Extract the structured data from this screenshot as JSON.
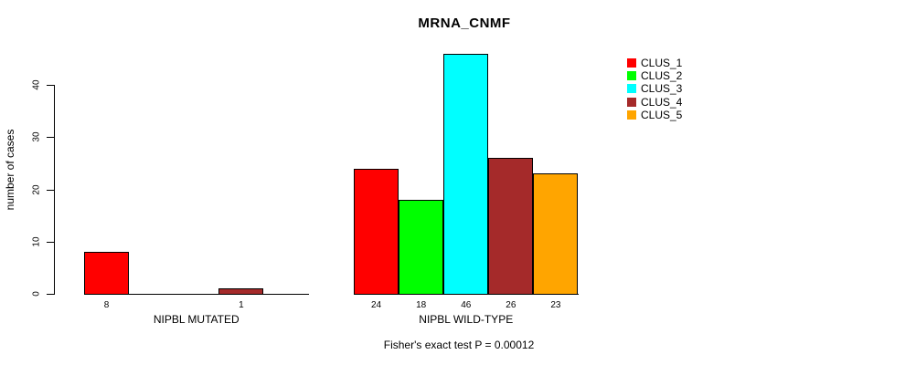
{
  "chart_data": {
    "type": "bar",
    "title": "MRNA_CNMF",
    "ylabel": "number of cases",
    "yticks": [
      0,
      10,
      20,
      30,
      40
    ],
    "ylim": [
      0,
      46
    ],
    "grid": false,
    "legend_position": "right",
    "legend": [
      "CLUS_1",
      "CLUS_2",
      "CLUS_3",
      "CLUS_4",
      "CLUS_5"
    ],
    "colors": [
      "#ff0000",
      "#00ff00",
      "#00ffff",
      "#a52a2a",
      "#ffa500"
    ],
    "groups": [
      {
        "label": "NIPBL MUTATED",
        "values": [
          8,
          0,
          0,
          1,
          0
        ]
      },
      {
        "label": "NIPBL WILD-TYPE",
        "values": [
          24,
          18,
          46,
          26,
          23
        ]
      }
    ],
    "value_labels_nonzero_only": true,
    "footer": "Fisher's exact test P = 0.00012"
  }
}
